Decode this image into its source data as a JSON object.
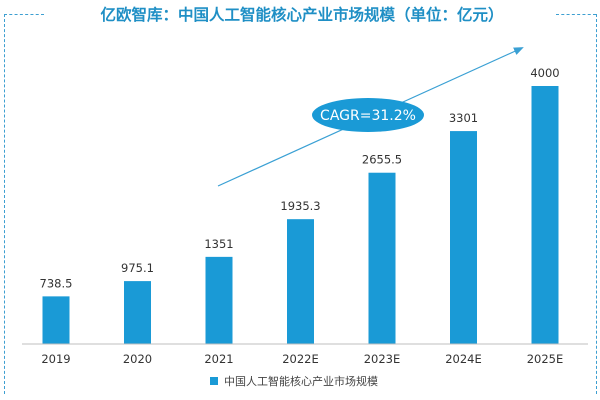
{
  "chart_data": {
    "type": "bar",
    "title": "亿欧智库：中国人工智能核心产业市场规模（单位：亿元）",
    "categories": [
      "2019",
      "2020",
      "2021",
      "2022E",
      "2023E",
      "2024E",
      "2025E"
    ],
    "series": [
      {
        "name": "中国人工智能核心产业市场规模",
        "values": [
          738.5,
          975.1,
          1351,
          1935.3,
          2655.5,
          3301,
          4000
        ]
      }
    ],
    "value_labels": [
      "738.5",
      "975.1",
      "1351",
      "1935.3",
      "2655.5",
      "3301",
      "4000"
    ],
    "ylim": [
      0,
      4000
    ],
    "grid": false,
    "legend_position": "bottom-center",
    "annotation": "CAGR=31.2%",
    "colors": {
      "bar": "#1a9ad6",
      "title": "#1f8fc5",
      "annotation_fill": "#1a9ad6",
      "frame": "#3d9fd1"
    }
  }
}
